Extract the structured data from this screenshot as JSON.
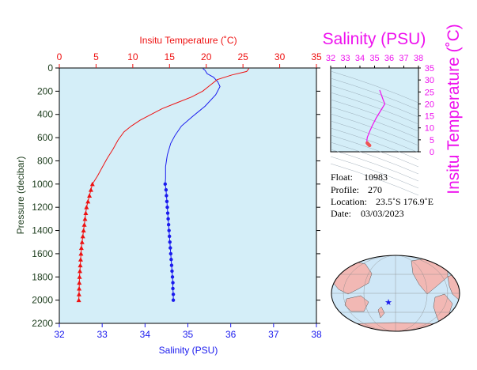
{
  "colors": {
    "temperature": "#ee1111",
    "salinity": "#1a1aee",
    "pressure_axis": "#1b3b1b",
    "ts_plot": "#ee11ee",
    "plot_background": "#d4eef8",
    "map_land": "#f2b8b4",
    "map_ocean": "#cfe7f7"
  },
  "info": {
    "float_label": "Float:",
    "float_value": "10983",
    "profile_label": "Profile:",
    "profile_value": "270",
    "location_label": "Location:",
    "location_value": "23.5˚S  176.9˚E",
    "date_label": "Date:",
    "date_value": "03/03/2023"
  },
  "map": {
    "marker": "star-icon",
    "marker_color": "#1a1aee"
  },
  "chart_data": [
    {
      "type": "line",
      "xlabel": "Salinity (PSU)",
      "x2label": "Insitu Temperature (˚C)",
      "ylabel": "Pressure (decibar)",
      "ylim": [
        2200,
        0
      ],
      "y_ticks": [
        0,
        200,
        400,
        600,
        800,
        1000,
        1200,
        1400,
        1600,
        1800,
        2000,
        2200
      ],
      "salinity_axis": {
        "range": [
          32,
          38
        ],
        "ticks": [
          32,
          33,
          34,
          35,
          36,
          37,
          38
        ]
      },
      "temperature_axis": {
        "range": [
          0,
          35
        ],
        "ticks": [
          0,
          5,
          10,
          15,
          20,
          25,
          30,
          35
        ]
      },
      "grid": false,
      "series": [
        {
          "name": "Salinity (PSU)",
          "axis": "salinity",
          "color": "#1a1aee",
          "points": [
            [
              35.35,
              5
            ],
            [
              35.4,
              20
            ],
            [
              35.45,
              50
            ],
            [
              35.6,
              80
            ],
            [
              35.7,
              120
            ],
            [
              35.75,
              160
            ],
            [
              35.65,
              230
            ],
            [
              35.4,
              330
            ],
            [
              35.1,
              420
            ],
            [
              34.85,
              500
            ],
            [
              34.7,
              580
            ],
            [
              34.6,
              650
            ],
            [
              34.52,
              750
            ],
            [
              34.48,
              850
            ],
            [
              34.48,
              950
            ],
            [
              34.47,
              1000
            ]
          ],
          "marked_points": [
            [
              34.47,
              1000
            ],
            [
              34.49,
              1050
            ],
            [
              34.5,
              1100
            ],
            [
              34.51,
              1150
            ],
            [
              34.52,
              1200
            ],
            [
              34.53,
              1250
            ],
            [
              34.54,
              1300
            ],
            [
              34.55,
              1350
            ],
            [
              34.56,
              1400
            ],
            [
              34.57,
              1450
            ],
            [
              34.58,
              1500
            ],
            [
              34.59,
              1550
            ],
            [
              34.6,
              1600
            ],
            [
              34.61,
              1650
            ],
            [
              34.62,
              1700
            ],
            [
              34.63,
              1750
            ],
            [
              34.64,
              1800
            ],
            [
              34.65,
              1850
            ],
            [
              34.65,
              1900
            ],
            [
              34.66,
              1950
            ],
            [
              34.66,
              2000
            ]
          ]
        },
        {
          "name": "Insitu Temperature (˚C)",
          "axis": "temperature",
          "color": "#ee1111",
          "points": [
            [
              25.8,
              5
            ],
            [
              25.5,
              30
            ],
            [
              23.5,
              60
            ],
            [
              21.5,
              100
            ],
            [
              20.5,
              150
            ],
            [
              19.5,
              200
            ],
            [
              18.0,
              250
            ],
            [
              16.0,
              300
            ],
            [
              14.0,
              350
            ],
            [
              12.5,
              400
            ],
            [
              11.0,
              450
            ],
            [
              9.8,
              500
            ],
            [
              8.8,
              550
            ],
            [
              8.0,
              620
            ],
            [
              7.3,
              700
            ],
            [
              6.5,
              780
            ],
            [
              5.8,
              860
            ],
            [
              5.2,
              930
            ],
            [
              4.5,
              1000
            ]
          ],
          "marked_points": [
            [
              4.5,
              1000
            ],
            [
              4.3,
              1050
            ],
            [
              4.1,
              1100
            ],
            [
              3.9,
              1150
            ],
            [
              3.7,
              1200
            ],
            [
              3.6,
              1250
            ],
            [
              3.5,
              1300
            ],
            [
              3.4,
              1350
            ],
            [
              3.3,
              1400
            ],
            [
              3.2,
              1450
            ],
            [
              3.1,
              1500
            ],
            [
              3.0,
              1550
            ],
            [
              2.95,
              1600
            ],
            [
              2.9,
              1650
            ],
            [
              2.85,
              1700
            ],
            [
              2.8,
              1750
            ],
            [
              2.75,
              1800
            ],
            [
              2.72,
              1850
            ],
            [
              2.7,
              1900
            ],
            [
              2.68,
              1950
            ],
            [
              2.65,
              2000
            ]
          ]
        }
      ]
    },
    {
      "type": "line",
      "title": "Salinity (PSU)",
      "ylabel": "Insitu Temperature (˚C)",
      "xlim": [
        32,
        38
      ],
      "ylim": [
        0,
        35
      ],
      "x_ticks": [
        32,
        33,
        34,
        35,
        36,
        37,
        38
      ],
      "y_ticks": [
        0,
        5,
        10,
        15,
        20,
        25,
        30,
        35
      ],
      "series": [
        {
          "color": "#ee11ee",
          "points": [
            [
              35.35,
              25.8
            ],
            [
              35.6,
              21.5
            ],
            [
              35.7,
              20
            ],
            [
              35.4,
              17
            ],
            [
              35.1,
              14
            ],
            [
              34.85,
              11
            ],
            [
              34.7,
              9
            ],
            [
              34.6,
              7.5
            ],
            [
              34.5,
              6
            ],
            [
              34.47,
              4.5
            ],
            [
              34.5,
              3.7
            ],
            [
              34.55,
              3.3
            ],
            [
              34.6,
              3.0
            ],
            [
              34.66,
              2.65
            ]
          ]
        }
      ]
    }
  ]
}
